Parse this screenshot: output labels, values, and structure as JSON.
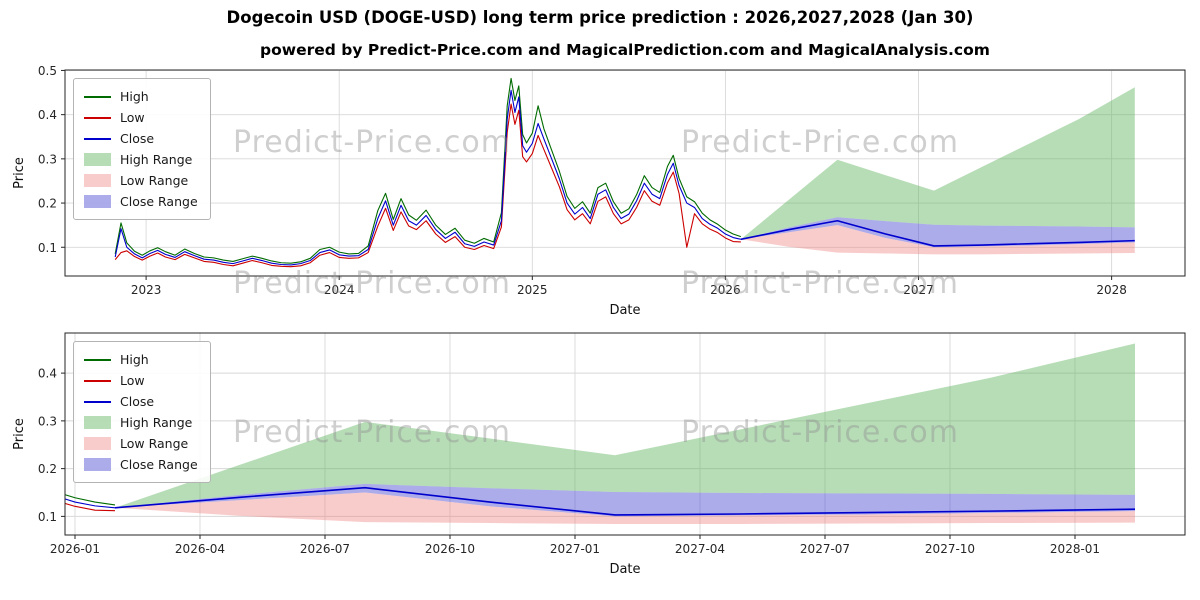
{
  "page": {
    "title": "Dogecoin USD (DOGE-USD) long term price prediction : 2026,2027,2028 (Jan 30)",
    "subtitle": "powered by Predict-Price.com and MagicalPrediction.com and MagicalAnalysis.com",
    "watermark_text": "Predict-Price.com"
  },
  "colors": {
    "high": "#006b00",
    "low": "#cc0000",
    "close": "#0000cd",
    "high_range": "rgba(96,180,96,0.45)",
    "low_range": "rgba(240,128,128,0.40)",
    "close_range": "rgba(70,70,210,0.45)",
    "grid": "#d8d8d8",
    "spine": "#262626",
    "watermark": "#8f8f8f"
  },
  "legend": {
    "items": [
      {
        "label": "High",
        "type": "line",
        "color_key": "high"
      },
      {
        "label": "Low",
        "type": "line",
        "color_key": "low"
      },
      {
        "label": "Close",
        "type": "line",
        "color_key": "close"
      },
      {
        "label": "High Range",
        "type": "patch",
        "color_key": "high_range"
      },
      {
        "label": "Low Range",
        "type": "patch",
        "color_key": "low_range"
      },
      {
        "label": "Close Range",
        "type": "patch",
        "color_key": "close_range"
      }
    ]
  },
  "chart_data": {
    "type": "line",
    "title": "Dogecoin USD (DOGE-USD) long term price prediction : 2026,2027,2028 (Jan 30)",
    "subtitle": "powered by Predict-Price.com and MagicalPrediction.com and MagicalAnalysis.com",
    "series": {
      "historical": {
        "x": [
          2022.84,
          2022.87,
          2022.9,
          2022.94,
          2022.98,
          2023.02,
          2023.06,
          2023.1,
          2023.15,
          2023.2,
          2023.25,
          2023.3,
          2023.35,
          2023.4,
          2023.45,
          2023.5,
          2023.55,
          2023.6,
          2023.65,
          2023.7,
          2023.75,
          2023.8,
          2023.85,
          2023.9,
          2023.95,
          2024.0,
          2024.05,
          2024.1,
          2024.15,
          2024.2,
          2024.24,
          2024.28,
          2024.32,
          2024.36,
          2024.4,
          2024.45,
          2024.5,
          2024.55,
          2024.6,
          2024.65,
          2024.7,
          2024.75,
          2024.8,
          2024.84,
          2024.87,
          2024.89,
          2024.91,
          2024.93,
          2024.95,
          2024.97,
          2025.0,
          2025.03,
          2025.06,
          2025.1,
          2025.14,
          2025.18,
          2025.22,
          2025.26,
          2025.3,
          2025.34,
          2025.38,
          2025.42,
          2025.46,
          2025.5,
          2025.54,
          2025.58,
          2025.62,
          2025.66,
          2025.7,
          2025.73,
          2025.76,
          2025.8,
          2025.84,
          2025.88,
          2025.92,
          2025.96,
          2026.0,
          2026.04,
          2026.08
        ],
        "high": [
          0.085,
          0.155,
          0.11,
          0.091,
          0.082,
          0.092,
          0.099,
          0.09,
          0.082,
          0.096,
          0.086,
          0.078,
          0.076,
          0.071,
          0.068,
          0.074,
          0.08,
          0.075,
          0.069,
          0.065,
          0.064,
          0.067,
          0.075,
          0.095,
          0.1,
          0.089,
          0.085,
          0.086,
          0.103,
          0.183,
          0.222,
          0.163,
          0.21,
          0.173,
          0.161,
          0.184,
          0.15,
          0.129,
          0.143,
          0.116,
          0.109,
          0.12,
          0.112,
          0.178,
          0.42,
          0.482,
          0.432,
          0.465,
          0.355,
          0.336,
          0.358,
          0.42,
          0.368,
          0.32,
          0.272,
          0.215,
          0.188,
          0.203,
          0.177,
          0.235,
          0.245,
          0.203,
          0.177,
          0.187,
          0.219,
          0.262,
          0.235,
          0.224,
          0.283,
          0.308,
          0.256,
          0.214,
          0.203,
          0.177,
          0.162,
          0.152,
          0.139,
          0.13,
          0.124
        ],
        "low": [
          0.072,
          0.088,
          0.092,
          0.079,
          0.071,
          0.08,
          0.087,
          0.078,
          0.072,
          0.084,
          0.076,
          0.068,
          0.066,
          0.061,
          0.058,
          0.064,
          0.07,
          0.065,
          0.059,
          0.057,
          0.056,
          0.058,
          0.065,
          0.082,
          0.088,
          0.077,
          0.075,
          0.076,
          0.088,
          0.148,
          0.188,
          0.138,
          0.18,
          0.148,
          0.14,
          0.16,
          0.13,
          0.111,
          0.124,
          0.1,
          0.095,
          0.104,
          0.097,
          0.146,
          0.36,
          0.424,
          0.378,
          0.41,
          0.305,
          0.293,
          0.312,
          0.353,
          0.321,
          0.279,
          0.237,
          0.185,
          0.162,
          0.176,
          0.153,
          0.204,
          0.214,
          0.176,
          0.153,
          0.162,
          0.19,
          0.228,
          0.204,
          0.195,
          0.246,
          0.27,
          0.222,
          0.1,
          0.176,
          0.153,
          0.141,
          0.133,
          0.121,
          0.113,
          0.112
        ],
        "close": [
          0.078,
          0.142,
          0.1,
          0.085,
          0.076,
          0.086,
          0.093,
          0.084,
          0.077,
          0.09,
          0.081,
          0.073,
          0.071,
          0.066,
          0.063,
          0.069,
          0.075,
          0.07,
          0.064,
          0.061,
          0.06,
          0.063,
          0.07,
          0.088,
          0.094,
          0.083,
          0.08,
          0.081,
          0.095,
          0.165,
          0.205,
          0.15,
          0.195,
          0.16,
          0.15,
          0.172,
          0.14,
          0.12,
          0.134,
          0.108,
          0.102,
          0.112,
          0.105,
          0.16,
          0.39,
          0.455,
          0.405,
          0.44,
          0.33,
          0.315,
          0.335,
          0.38,
          0.345,
          0.3,
          0.255,
          0.2,
          0.175,
          0.19,
          0.165,
          0.22,
          0.23,
          0.19,
          0.165,
          0.175,
          0.205,
          0.245,
          0.22,
          0.21,
          0.265,
          0.29,
          0.24,
          0.2,
          0.19,
          0.165,
          0.152,
          0.143,
          0.13,
          0.122,
          0.118
        ]
      },
      "forecast": {
        "x": [
          2026.08,
          2026.33,
          2026.58,
          2026.83,
          2027.08,
          2027.33,
          2027.58,
          2027.83,
          2028.12
        ],
        "high_range_upper": [
          0.118,
          0.208,
          0.298,
          0.263,
          0.228,
          0.282,
          0.336,
          0.39,
          0.462
        ],
        "close_range_upper": [
          0.118,
          0.145,
          0.168,
          0.159,
          0.151,
          0.149,
          0.148,
          0.147,
          0.145
        ],
        "close": [
          0.118,
          0.14,
          0.16,
          0.13,
          0.103,
          0.105,
          0.108,
          0.111,
          0.115
        ],
        "close_range_lower": [
          0.118,
          0.134,
          0.15,
          0.121,
          0.1,
          0.102,
          0.104,
          0.107,
          0.111
        ],
        "low_range_lower": [
          0.118,
          0.101,
          0.088,
          0.086,
          0.084,
          0.084,
          0.085,
          0.086,
          0.087
        ]
      }
    },
    "charts": [
      {
        "name": "full-history-with-forecast",
        "xlabel": "Date",
        "ylabel": "Price",
        "xlim": [
          2022.58,
          2028.38
        ],
        "ylim": [
          0.035,
          0.501
        ],
        "xticks": {
          "values": [
            2023,
            2024,
            2025,
            2026,
            2027,
            2028
          ],
          "labels": [
            "2023",
            "2024",
            "2025",
            "2026",
            "2027",
            "2028"
          ]
        },
        "yticks": {
          "values": [
            0.1,
            0.2,
            0.3,
            0.4,
            0.5
          ],
          "labels": [
            "0.1",
            "0.2",
            "0.3",
            "0.4",
            "0.5"
          ]
        },
        "grid": true,
        "legend_position": "upper left"
      },
      {
        "name": "forecast-detail",
        "xlabel": "Date",
        "ylabel": "Price",
        "xlim": [
          2025.98,
          2028.22
        ],
        "ylim": [
          0.061,
          0.484
        ],
        "xticks": {
          "values": [
            2026.0,
            2026.25,
            2026.5,
            2026.75,
            2027.0,
            2027.25,
            2027.5,
            2027.75,
            2028.0
          ],
          "labels": [
            "2026-01",
            "2026-04",
            "2026-07",
            "2026-10",
            "2027-01",
            "2027-04",
            "2027-07",
            "2027-10",
            "2028-01"
          ]
        },
        "yticks": {
          "values": [
            0.1,
            0.2,
            0.3,
            0.4
          ],
          "labels": [
            "0.1",
            "0.2",
            "0.3",
            "0.4"
          ]
        },
        "grid": true,
        "legend_position": "upper left"
      }
    ]
  }
}
